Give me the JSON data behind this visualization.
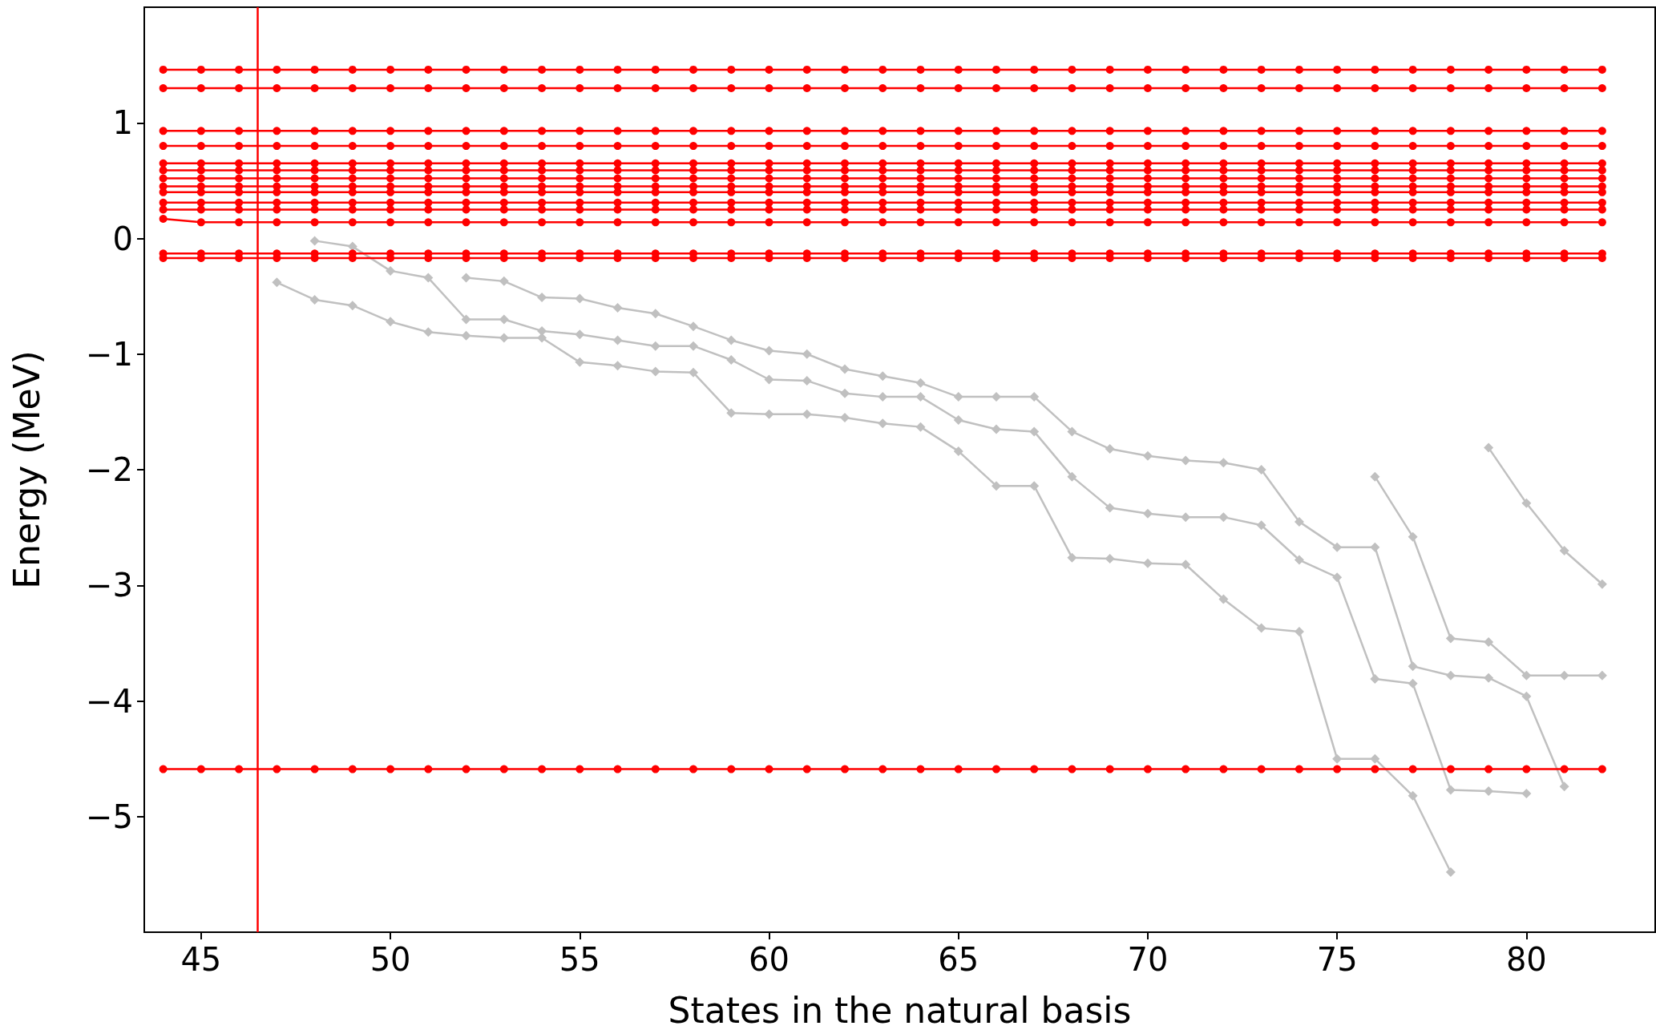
{
  "chart_data": {
    "type": "line",
    "xlabel": "States in the natural basis",
    "ylabel": "Energy (MeV)",
    "xlim": [
      43.5,
      83.4
    ],
    "ylim": [
      -6.0,
      2.0
    ],
    "xticks": [
      45,
      50,
      55,
      60,
      65,
      70,
      75,
      80
    ],
    "yticks": [
      -5,
      -4,
      -3,
      -2,
      -1,
      0,
      1
    ],
    "grid": false,
    "line_style": "solid",
    "x": [
      44,
      45,
      46,
      47,
      48,
      49,
      50,
      51,
      52,
      53,
      54,
      55,
      56,
      57,
      58,
      59,
      60,
      61,
      62,
      63,
      64,
      65,
      66,
      67,
      68,
      69,
      70,
      71,
      72,
      73,
      74,
      75,
      76,
      77,
      78,
      79,
      80,
      81,
      82
    ],
    "ref_lines": [
      {
        "axis": "x",
        "value": 46.5,
        "color": "#ff0000"
      }
    ],
    "series": [
      {
        "color": "#c0c0c0",
        "marker": "diamond",
        "x": [
          47,
          48,
          49,
          50,
          51,
          52,
          53,
          54,
          55,
          56,
          57,
          58,
          59,
          60,
          61,
          62,
          63,
          64,
          65,
          66,
          67,
          68,
          69,
          70,
          71,
          72,
          73,
          74,
          75,
          76,
          77,
          78
        ],
        "values": [
          -0.38,
          -0.53,
          -0.58,
          -0.72,
          -0.81,
          -0.84,
          -0.86,
          -0.86,
          -1.07,
          -1.1,
          -1.15,
          -1.16,
          -1.51,
          -1.52,
          -1.52,
          -1.55,
          -1.6,
          -1.63,
          -1.84,
          -2.14,
          -2.14,
          -2.76,
          -2.77,
          -2.81,
          -2.82,
          -3.12,
          -3.37,
          -3.4,
          -4.5,
          -4.5,
          -4.82,
          -5.48
        ]
      },
      {
        "color": "#c0c0c0",
        "marker": "diamond",
        "x": [
          48,
          49,
          50,
          51,
          52,
          53,
          54,
          55,
          56,
          57,
          58,
          59,
          60,
          61,
          62,
          63,
          64,
          65,
          66,
          67,
          68,
          69,
          70,
          71,
          72,
          73,
          74,
          75,
          76,
          77,
          78,
          79,
          80
        ],
        "values": [
          -0.02,
          -0.07,
          -0.28,
          -0.34,
          -0.7,
          -0.7,
          -0.8,
          -0.83,
          -0.88,
          -0.93,
          -0.93,
          -1.05,
          -1.22,
          -1.23,
          -1.34,
          -1.37,
          -1.37,
          -1.57,
          -1.65,
          -1.67,
          -2.06,
          -2.33,
          -2.38,
          -2.41,
          -2.41,
          -2.48,
          -2.78,
          -2.93,
          -3.81,
          -3.85,
          -4.77,
          -4.78,
          -4.8
        ]
      },
      {
        "color": "#c0c0c0",
        "marker": "diamond",
        "x": [
          52,
          53,
          54,
          55,
          56,
          57,
          58,
          59,
          60,
          61,
          62,
          63,
          64,
          65,
          66,
          67,
          68,
          69,
          70,
          71,
          72,
          73,
          74,
          75,
          76,
          77,
          78,
          79,
          80,
          81
        ],
        "values": [
          -0.34,
          -0.37,
          -0.51,
          -0.52,
          -0.6,
          -0.65,
          -0.76,
          -0.88,
          -0.97,
          -1.0,
          -1.13,
          -1.19,
          -1.25,
          -1.37,
          -1.37,
          -1.37,
          -1.67,
          -1.82,
          -1.88,
          -1.92,
          -1.94,
          -2.0,
          -2.45,
          -2.67,
          -2.67,
          -3.7,
          -3.78,
          -3.8,
          -3.96,
          -4.74
        ]
      },
      {
        "color": "#c0c0c0",
        "marker": "diamond",
        "x": [
          76,
          77,
          78,
          79,
          80,
          81,
          82
        ],
        "values": [
          -2.06,
          -2.58,
          -3.46,
          -3.49,
          -3.78,
          -3.78,
          -3.78
        ]
      },
      {
        "color": "#c0c0c0",
        "marker": "diamond",
        "x": [
          79,
          80,
          81,
          82
        ],
        "values": [
          -1.81,
          -2.29,
          -2.7,
          -2.99
        ]
      },
      {
        "color": "#ff0000",
        "marker": "circle",
        "values": [
          1.46,
          1.46,
          1.46,
          1.46,
          1.46,
          1.46,
          1.46,
          1.46,
          1.46,
          1.46,
          1.46,
          1.46,
          1.46,
          1.46,
          1.46,
          1.46,
          1.46,
          1.46,
          1.46,
          1.46,
          1.46,
          1.46,
          1.46,
          1.46,
          1.46,
          1.46,
          1.46,
          1.46,
          1.46,
          1.46,
          1.46,
          1.46,
          1.46,
          1.46,
          1.46,
          1.46,
          1.46,
          1.46,
          1.46
        ]
      },
      {
        "color": "#ff0000",
        "marker": "circle",
        "values": [
          1.3,
          1.3,
          1.3,
          1.3,
          1.3,
          1.3,
          1.3,
          1.3,
          1.3,
          1.3,
          1.3,
          1.3,
          1.3,
          1.3,
          1.3,
          1.3,
          1.3,
          1.3,
          1.3,
          1.3,
          1.3,
          1.3,
          1.3,
          1.3,
          1.3,
          1.3,
          1.3,
          1.3,
          1.3,
          1.3,
          1.3,
          1.3,
          1.3,
          1.3,
          1.3,
          1.3,
          1.3,
          1.3,
          1.3
        ]
      },
      {
        "color": "#ff0000",
        "marker": "circle",
        "values": [
          0.93,
          0.93,
          0.93,
          0.93,
          0.93,
          0.93,
          0.93,
          0.93,
          0.93,
          0.93,
          0.93,
          0.93,
          0.93,
          0.93,
          0.93,
          0.93,
          0.93,
          0.93,
          0.93,
          0.93,
          0.93,
          0.93,
          0.93,
          0.93,
          0.93,
          0.93,
          0.93,
          0.93,
          0.93,
          0.93,
          0.93,
          0.93,
          0.93,
          0.93,
          0.93,
          0.93,
          0.93,
          0.93,
          0.93
        ]
      },
      {
        "color": "#ff0000",
        "marker": "circle",
        "values": [
          0.8,
          0.8,
          0.8,
          0.8,
          0.8,
          0.8,
          0.8,
          0.8,
          0.8,
          0.8,
          0.8,
          0.8,
          0.8,
          0.8,
          0.8,
          0.8,
          0.8,
          0.8,
          0.8,
          0.8,
          0.8,
          0.8,
          0.8,
          0.8,
          0.8,
          0.8,
          0.8,
          0.8,
          0.8,
          0.8,
          0.8,
          0.8,
          0.8,
          0.8,
          0.8,
          0.8,
          0.8,
          0.8,
          0.8
        ]
      },
      {
        "color": "#ff0000",
        "marker": "circle",
        "values": [
          0.65,
          0.65,
          0.65,
          0.65,
          0.65,
          0.65,
          0.65,
          0.65,
          0.65,
          0.65,
          0.65,
          0.65,
          0.65,
          0.65,
          0.65,
          0.65,
          0.65,
          0.65,
          0.65,
          0.65,
          0.65,
          0.65,
          0.65,
          0.65,
          0.65,
          0.65,
          0.65,
          0.65,
          0.65,
          0.65,
          0.65,
          0.65,
          0.65,
          0.65,
          0.65,
          0.65,
          0.65,
          0.65,
          0.65
        ]
      },
      {
        "color": "#ff0000",
        "marker": "circle",
        "values": [
          0.59,
          0.59,
          0.59,
          0.59,
          0.59,
          0.59,
          0.59,
          0.59,
          0.59,
          0.59,
          0.59,
          0.59,
          0.59,
          0.59,
          0.59,
          0.59,
          0.59,
          0.59,
          0.59,
          0.59,
          0.59,
          0.59,
          0.59,
          0.59,
          0.59,
          0.59,
          0.59,
          0.59,
          0.59,
          0.59,
          0.59,
          0.59,
          0.59,
          0.59,
          0.59,
          0.59,
          0.59,
          0.59,
          0.59
        ]
      },
      {
        "color": "#ff0000",
        "marker": "circle",
        "values": [
          0.52,
          0.52,
          0.52,
          0.52,
          0.52,
          0.52,
          0.52,
          0.52,
          0.52,
          0.52,
          0.52,
          0.52,
          0.52,
          0.52,
          0.52,
          0.52,
          0.52,
          0.52,
          0.52,
          0.52,
          0.52,
          0.52,
          0.52,
          0.52,
          0.52,
          0.52,
          0.52,
          0.52,
          0.52,
          0.52,
          0.52,
          0.52,
          0.52,
          0.52,
          0.52,
          0.52,
          0.52,
          0.52,
          0.52
        ]
      },
      {
        "color": "#ff0000",
        "marker": "circle",
        "values": [
          0.45,
          0.45,
          0.45,
          0.45,
          0.45,
          0.45,
          0.45,
          0.45,
          0.45,
          0.45,
          0.45,
          0.45,
          0.45,
          0.45,
          0.45,
          0.45,
          0.45,
          0.45,
          0.45,
          0.45,
          0.45,
          0.45,
          0.45,
          0.45,
          0.45,
          0.45,
          0.45,
          0.45,
          0.45,
          0.45,
          0.45,
          0.45,
          0.45,
          0.45,
          0.45,
          0.45,
          0.45,
          0.45,
          0.45
        ]
      },
      {
        "color": "#ff0000",
        "marker": "circle",
        "values": [
          0.4,
          0.4,
          0.4,
          0.4,
          0.4,
          0.4,
          0.4,
          0.4,
          0.4,
          0.4,
          0.4,
          0.4,
          0.4,
          0.4,
          0.4,
          0.4,
          0.4,
          0.4,
          0.4,
          0.4,
          0.4,
          0.4,
          0.4,
          0.4,
          0.4,
          0.4,
          0.4,
          0.4,
          0.4,
          0.4,
          0.4,
          0.4,
          0.4,
          0.4,
          0.4,
          0.4,
          0.4,
          0.4,
          0.4
        ]
      },
      {
        "color": "#ff0000",
        "marker": "circle",
        "values": [
          0.31,
          0.31,
          0.31,
          0.31,
          0.31,
          0.31,
          0.31,
          0.31,
          0.31,
          0.31,
          0.31,
          0.31,
          0.31,
          0.31,
          0.31,
          0.31,
          0.31,
          0.31,
          0.31,
          0.31,
          0.31,
          0.31,
          0.31,
          0.31,
          0.31,
          0.31,
          0.31,
          0.31,
          0.31,
          0.31,
          0.31,
          0.31,
          0.31,
          0.31,
          0.31,
          0.31,
          0.31,
          0.31,
          0.31
        ]
      },
      {
        "color": "#ff0000",
        "marker": "circle",
        "values": [
          0.25,
          0.25,
          0.25,
          0.25,
          0.25,
          0.25,
          0.25,
          0.25,
          0.25,
          0.25,
          0.25,
          0.25,
          0.25,
          0.25,
          0.25,
          0.25,
          0.25,
          0.25,
          0.25,
          0.25,
          0.25,
          0.25,
          0.25,
          0.25,
          0.25,
          0.25,
          0.25,
          0.25,
          0.25,
          0.25,
          0.25,
          0.25,
          0.25,
          0.25,
          0.25,
          0.25,
          0.25,
          0.25,
          0.25
        ]
      },
      {
        "color": "#ff0000",
        "marker": "circle",
        "values": [
          0.17,
          0.14,
          0.14,
          0.14,
          0.14,
          0.14,
          0.14,
          0.14,
          0.14,
          0.14,
          0.14,
          0.14,
          0.14,
          0.14,
          0.14,
          0.14,
          0.14,
          0.14,
          0.14,
          0.14,
          0.14,
          0.14,
          0.14,
          0.14,
          0.14,
          0.14,
          0.14,
          0.14,
          0.14,
          0.14,
          0.14,
          0.14,
          0.14,
          0.14,
          0.14,
          0.14,
          0.14,
          0.14,
          0.14
        ]
      },
      {
        "color": "#ff0000",
        "marker": "circle",
        "values": [
          -0.13,
          -0.13,
          -0.13,
          -0.13,
          -0.13,
          -0.13,
          -0.13,
          -0.13,
          -0.13,
          -0.13,
          -0.13,
          -0.13,
          -0.13,
          -0.13,
          -0.13,
          -0.13,
          -0.13,
          -0.13,
          -0.13,
          -0.13,
          -0.13,
          -0.13,
          -0.13,
          -0.13,
          -0.13,
          -0.13,
          -0.13,
          -0.13,
          -0.13,
          -0.13,
          -0.13,
          -0.13,
          -0.13,
          -0.13,
          -0.13,
          -0.13,
          -0.13,
          -0.13,
          -0.13
        ]
      },
      {
        "color": "#ff0000",
        "marker": "circle",
        "values": [
          -0.17,
          -0.17,
          -0.17,
          -0.17,
          -0.17,
          -0.17,
          -0.17,
          -0.17,
          -0.17,
          -0.17,
          -0.17,
          -0.17,
          -0.17,
          -0.17,
          -0.17,
          -0.17,
          -0.17,
          -0.17,
          -0.17,
          -0.17,
          -0.17,
          -0.17,
          -0.17,
          -0.17,
          -0.17,
          -0.17,
          -0.17,
          -0.17,
          -0.17,
          -0.17,
          -0.17,
          -0.17,
          -0.17,
          -0.17,
          -0.17,
          -0.17,
          -0.17,
          -0.17,
          -0.17
        ]
      },
      {
        "color": "#ff0000",
        "marker": "circle",
        "values": [
          -4.59,
          -4.59,
          -4.59,
          -4.59,
          -4.59,
          -4.59,
          -4.59,
          -4.59,
          -4.59,
          -4.59,
          -4.59,
          -4.59,
          -4.59,
          -4.59,
          -4.59,
          -4.59,
          -4.59,
          -4.59,
          -4.59,
          -4.59,
          -4.59,
          -4.59,
          -4.59,
          -4.59,
          -4.59,
          -4.59,
          -4.59,
          -4.59,
          -4.59,
          -4.59,
          -4.59,
          -4.59,
          -4.59,
          -4.59,
          -4.59,
          -4.59,
          -4.59,
          -4.59,
          -4.59
        ]
      }
    ]
  }
}
